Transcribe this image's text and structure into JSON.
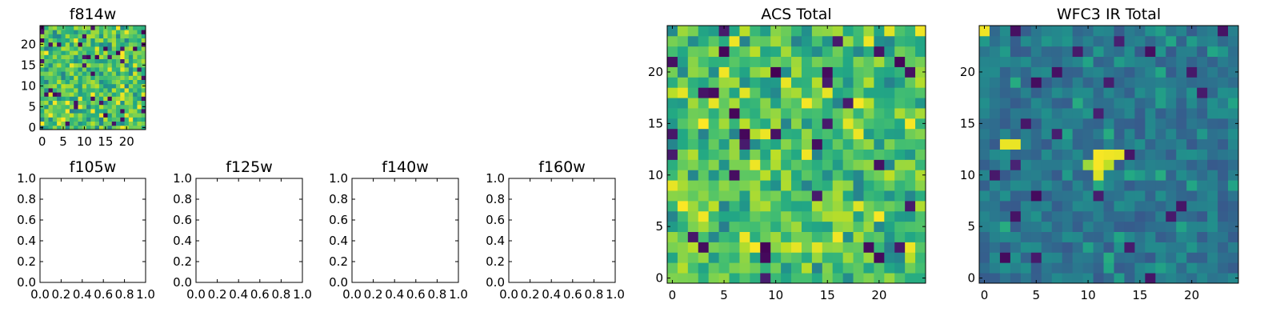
{
  "colors": {
    "colormap": "viridis",
    "frame": "#000000",
    "background": "#ffffff"
  },
  "chart_data": [
    {
      "id": "f814w",
      "type": "heatmap",
      "title": "f814w",
      "cells": 25,
      "xlim": [
        -0.5,
        24.5
      ],
      "ylim": [
        -0.5,
        24.5
      ],
      "xticks": [
        0,
        5,
        10,
        15,
        20
      ],
      "yticks": [
        0,
        5,
        10,
        15,
        20
      ],
      "vmin": 0,
      "vmax": 1,
      "data_seed": 814,
      "data_note": "random-looking pixel noise, mostly green/yellow with sparse dark pixels"
    },
    {
      "id": "f105w",
      "type": "empty",
      "title": "f105w",
      "xlim": [
        0,
        1
      ],
      "ylim": [
        0,
        1
      ],
      "xtick_labels": [
        "0.0",
        "0.2",
        "0.4",
        "0.6",
        "0.8",
        "1.0"
      ],
      "ytick_labels": [
        "0.0",
        "0.2",
        "0.4",
        "0.6",
        "0.8",
        "1.0"
      ]
    },
    {
      "id": "f125w",
      "type": "empty",
      "title": "f125w",
      "xlim": [
        0,
        1
      ],
      "ylim": [
        0,
        1
      ],
      "xtick_labels": [
        "0.0",
        "0.2",
        "0.4",
        "0.6",
        "0.8",
        "1.0"
      ],
      "ytick_labels": [
        "0.0",
        "0.2",
        "0.4",
        "0.6",
        "0.8",
        "1.0"
      ]
    },
    {
      "id": "f140w",
      "type": "empty",
      "title": "f140w",
      "xlim": [
        0,
        1
      ],
      "ylim": [
        0,
        1
      ],
      "xtick_labels": [
        "0.0",
        "0.2",
        "0.4",
        "0.6",
        "0.8",
        "1.0"
      ],
      "ytick_labels": [
        "0.0",
        "0.2",
        "0.4",
        "0.6",
        "0.8",
        "1.0"
      ]
    },
    {
      "id": "f160w",
      "type": "empty",
      "title": "f160w",
      "xlim": [
        0,
        1
      ],
      "ylim": [
        0,
        1
      ],
      "xtick_labels": [
        "0.0",
        "0.2",
        "0.4",
        "0.6",
        "0.8",
        "1.0"
      ],
      "ytick_labels": [
        "0.0",
        "0.2",
        "0.4",
        "0.6",
        "0.8",
        "1.0"
      ]
    },
    {
      "id": "acs_total",
      "type": "heatmap",
      "title": "ACS Total",
      "cells": 25,
      "xlim": [
        -0.5,
        24.5
      ],
      "ylim": [
        -0.5,
        24.5
      ],
      "xticks": [
        0,
        5,
        10,
        15,
        20
      ],
      "yticks": [
        0,
        5,
        10,
        15,
        20
      ],
      "vmin": 0,
      "vmax": 1,
      "data_seed": 2024,
      "data_note": "noise field, mostly green/yellow, bright patches near top-left, dark pixels scattered"
    },
    {
      "id": "wfc3_ir_total",
      "type": "heatmap",
      "title": "WFC3 IR Total",
      "cells": 25,
      "xlim": [
        -0.5,
        24.5
      ],
      "ylim": [
        -0.5,
        24.5
      ],
      "xticks": [
        0,
        5,
        10,
        15,
        20
      ],
      "yticks": [
        0,
        5,
        10,
        15,
        20
      ],
      "vmin": 0,
      "vmax": 1,
      "data_seed": 3,
      "data_note": "noise field, mostly blue/teal with scattered dark pixels, yellow pixels at (0,24), (2,13),(3,13), (11,11),(11,12),(12,12),(13,12),(11,10),(12,10)",
      "highlights": [
        {
          "x": 0,
          "y": 24,
          "v": 0.98
        },
        {
          "x": 2,
          "y": 13,
          "v": 0.97
        },
        {
          "x": 3,
          "y": 13,
          "v": 0.97
        },
        {
          "x": 11,
          "y": 12,
          "v": 0.99
        },
        {
          "x": 12,
          "y": 12,
          "v": 0.98
        },
        {
          "x": 13,
          "y": 12,
          "v": 0.97
        },
        {
          "x": 11,
          "y": 11,
          "v": 0.99
        },
        {
          "x": 10,
          "y": 11,
          "v": 0.85
        },
        {
          "x": 12,
          "y": 11,
          "v": 0.9
        },
        {
          "x": 11,
          "y": 10,
          "v": 0.95
        }
      ]
    }
  ]
}
